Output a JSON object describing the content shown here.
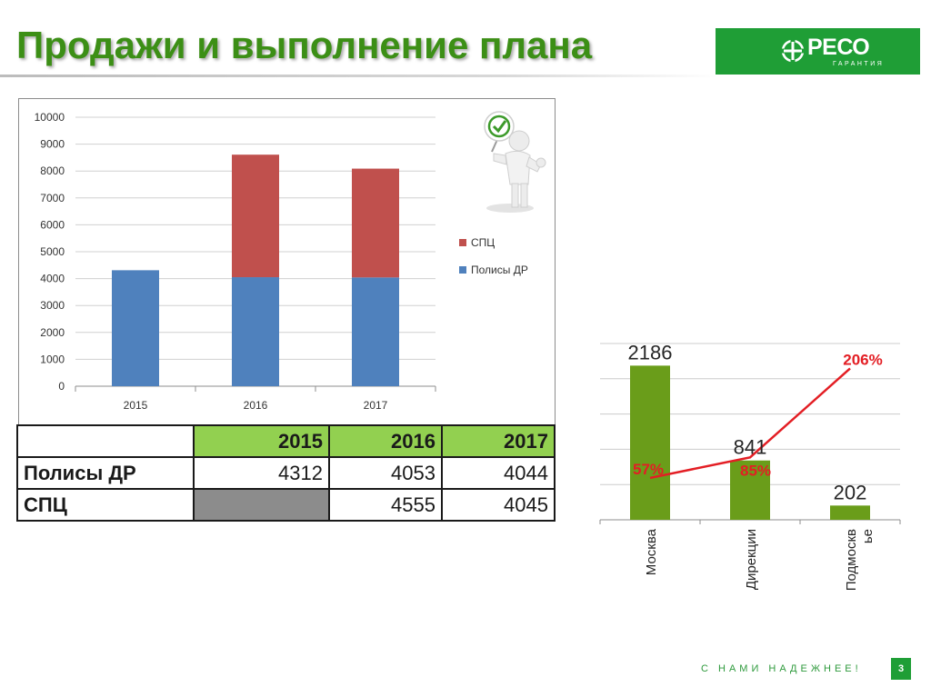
{
  "slide": {
    "title": "Продажи и выполнение плана",
    "slogan": "С НАМИ НАДЕЖНЕЕ!",
    "page_number": "3"
  },
  "logo": {
    "name": "РЕСО",
    "subtitle": "ГАРАНТИЯ",
    "color": "#1f9e36"
  },
  "colors": {
    "title_green": "#3c8f16",
    "polisy_blue": "#4f81bd",
    "spc_red": "#c0504d",
    "table_header_green": "#92d050",
    "region_bar_green": "#6a9d1a",
    "ratio_line_red": "#e31e24"
  },
  "table": {
    "years": [
      "2015",
      "2016",
      "2017"
    ],
    "rows": [
      {
        "label": "Полисы ДР",
        "values": [
          "4312",
          "4053",
          "4044"
        ]
      },
      {
        "label": "СПЦ",
        "values": [
          "",
          "4555",
          "4045"
        ]
      }
    ]
  },
  "chart_data": [
    {
      "type": "bar",
      "stacked": true,
      "categories": [
        "2015",
        "2016",
        "2017"
      ],
      "series": [
        {
          "name": "Полисы ДР",
          "values": [
            4312,
            4053,
            4044
          ],
          "color": "#4f81bd"
        },
        {
          "name": "СПЦ",
          "values": [
            0,
            4555,
            4045
          ],
          "color": "#c0504d"
        }
      ],
      "ylim": [
        0,
        10000
      ],
      "yticks": [
        0,
        1000,
        2000,
        3000,
        4000,
        5000,
        6000,
        7000,
        8000,
        9000,
        10000
      ],
      "legend_position": "right",
      "grid": true
    },
    {
      "type": "bar",
      "categories": [
        "Москва",
        "Дирекции",
        "Подмосковье"
      ],
      "category_labels": [
        [
          "Москва"
        ],
        [
          "Дирекции"
        ],
        [
          "Подмоскв",
          "ье"
        ]
      ],
      "series": [
        {
          "values": [
            2186,
            841,
            202
          ],
          "color": "#6a9d1a",
          "data_labels": [
            "2186",
            "841",
            "202"
          ]
        },
        {
          "type": "line",
          "values": [
            57,
            85,
            206
          ],
          "unit": "%",
          "color": "#e31e24",
          "data_labels": [
            "57%",
            "85%",
            "206%"
          ]
        }
      ],
      "ylim": [
        0,
        2500
      ],
      "grid": true,
      "legend": false
    }
  ]
}
